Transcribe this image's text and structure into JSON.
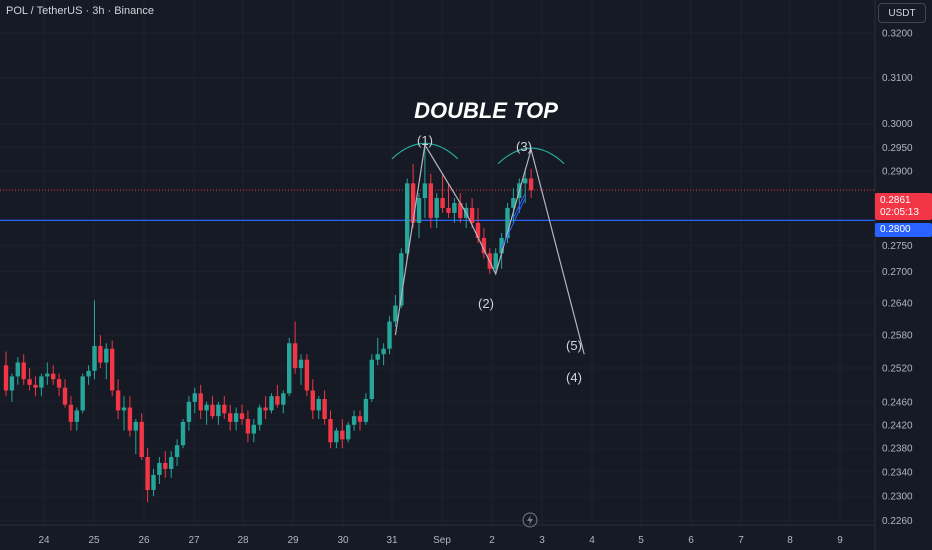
{
  "header": {
    "symbol": "POL / TetherUS · 3h · Binance",
    "currency_button": "USDT"
  },
  "colors": {
    "background": "#161a25",
    "up": "#26a69a",
    "down": "#f23645",
    "level_line": "#2962ff",
    "pattern_line": "#b2b5be",
    "arc": "#26a69a"
  },
  "price_tags": {
    "current_price": "0.2861",
    "countdown": "02:05:13",
    "level_price": "0.2800"
  },
  "annotations": {
    "title": "DOUBLE TOP",
    "p1": "(1)",
    "p2": "(2)",
    "p3": "(3)",
    "p4": "(4)",
    "p5": "(5)"
  },
  "chart_data": {
    "type": "candlestick",
    "title": "DOUBLE TOP",
    "x_ticks": [
      "24",
      "25",
      "26",
      "27",
      "28",
      "29",
      "30",
      "31",
      "Sep",
      "2",
      "3",
      "4",
      "5",
      "6",
      "7",
      "8",
      "9"
    ],
    "y_ticks": [
      "0.3200",
      "0.3100",
      "0.3000",
      "0.2950",
      "0.2900",
      "0.2750",
      "0.2700",
      "0.2640",
      "0.2580",
      "0.2520",
      "0.2460",
      "0.2420",
      "0.2380",
      "0.2340",
      "0.2300",
      "0.2260"
    ],
    "y_tick_values": [
      0.32,
      0.31,
      0.3,
      0.295,
      0.29,
      0.275,
      0.27,
      0.264,
      0.258,
      0.252,
      0.246,
      0.242,
      0.238,
      0.234,
      0.23,
      0.226
    ],
    "ylim": [
      0.2245,
      0.3235
    ],
    "y_scale": "log",
    "current_price": 0.2861,
    "horizontal_level": 0.28,
    "candles": [
      [
        0.2525,
        0.255,
        0.247,
        0.248
      ],
      [
        0.248,
        0.251,
        0.246,
        0.2505
      ],
      [
        0.2505,
        0.254,
        0.249,
        0.253
      ],
      [
        0.253,
        0.2545,
        0.249,
        0.25
      ],
      [
        0.25,
        0.252,
        0.248,
        0.249
      ],
      [
        0.249,
        0.2505,
        0.247,
        0.2485
      ],
      [
        0.2485,
        0.251,
        0.247,
        0.2505
      ],
      [
        0.2505,
        0.253,
        0.249,
        0.251
      ],
      [
        0.251,
        0.2525,
        0.249,
        0.25
      ],
      [
        0.25,
        0.251,
        0.247,
        0.2485
      ],
      [
        0.2485,
        0.25,
        0.245,
        0.2455
      ],
      [
        0.2455,
        0.247,
        0.241,
        0.2425
      ],
      [
        0.2425,
        0.245,
        0.241,
        0.2445
      ],
      [
        0.2445,
        0.251,
        0.244,
        0.2505
      ],
      [
        0.2505,
        0.2525,
        0.249,
        0.2515
      ],
      [
        0.2515,
        0.2645,
        0.25,
        0.256
      ],
      [
        0.256,
        0.258,
        0.252,
        0.253
      ],
      [
        0.253,
        0.2565,
        0.25,
        0.2555
      ],
      [
        0.2555,
        0.257,
        0.247,
        0.248
      ],
      [
        0.248,
        0.25,
        0.243,
        0.2445
      ],
      [
        0.2445,
        0.247,
        0.241,
        0.245
      ],
      [
        0.245,
        0.247,
        0.24,
        0.241
      ],
      [
        0.241,
        0.243,
        0.237,
        0.2425
      ],
      [
        0.2425,
        0.244,
        0.236,
        0.2365
      ],
      [
        0.2365,
        0.238,
        0.229,
        0.231
      ],
      [
        0.231,
        0.2345,
        0.23,
        0.2335
      ],
      [
        0.2335,
        0.2365,
        0.232,
        0.2355
      ],
      [
        0.2355,
        0.2375,
        0.233,
        0.2345
      ],
      [
        0.2345,
        0.2375,
        0.233,
        0.2365
      ],
      [
        0.2365,
        0.2395,
        0.235,
        0.2385
      ],
      [
        0.2385,
        0.243,
        0.238,
        0.2425
      ],
      [
        0.2425,
        0.247,
        0.241,
        0.246
      ],
      [
        0.246,
        0.2485,
        0.244,
        0.2475
      ],
      [
        0.2475,
        0.249,
        0.243,
        0.2445
      ],
      [
        0.2445,
        0.246,
        0.242,
        0.2455
      ],
      [
        0.2455,
        0.247,
        0.243,
        0.2435
      ],
      [
        0.2435,
        0.246,
        0.242,
        0.2455
      ],
      [
        0.2455,
        0.247,
        0.243,
        0.244
      ],
      [
        0.244,
        0.2455,
        0.241,
        0.2425
      ],
      [
        0.2425,
        0.245,
        0.241,
        0.244
      ],
      [
        0.244,
        0.2455,
        0.242,
        0.243
      ],
      [
        0.243,
        0.2445,
        0.239,
        0.2405
      ],
      [
        0.2405,
        0.243,
        0.239,
        0.242
      ],
      [
        0.242,
        0.2455,
        0.241,
        0.245
      ],
      [
        0.245,
        0.247,
        0.243,
        0.2445
      ],
      [
        0.2445,
        0.2475,
        0.244,
        0.247
      ],
      [
        0.247,
        0.249,
        0.245,
        0.2455
      ],
      [
        0.2455,
        0.248,
        0.244,
        0.2475
      ],
      [
        0.2475,
        0.2575,
        0.247,
        0.2565
      ],
      [
        0.2565,
        0.2605,
        0.251,
        0.252
      ],
      [
        0.252,
        0.2545,
        0.249,
        0.2535
      ],
      [
        0.2535,
        0.2545,
        0.247,
        0.248
      ],
      [
        0.248,
        0.25,
        0.243,
        0.2445
      ],
      [
        0.2445,
        0.247,
        0.243,
        0.2465
      ],
      [
        0.2465,
        0.248,
        0.242,
        0.243
      ],
      [
        0.243,
        0.2445,
        0.238,
        0.239
      ],
      [
        0.239,
        0.2415,
        0.238,
        0.241
      ],
      [
        0.241,
        0.243,
        0.238,
        0.2395
      ],
      [
        0.2395,
        0.2425,
        0.239,
        0.242
      ],
      [
        0.242,
        0.2445,
        0.241,
        0.2435
      ],
      [
        0.2435,
        0.2445,
        0.241,
        0.2425
      ],
      [
        0.2425,
        0.2475,
        0.242,
        0.2465
      ],
      [
        0.2465,
        0.2545,
        0.246,
        0.2535
      ],
      [
        0.2535,
        0.2575,
        0.2525,
        0.2545
      ],
      [
        0.2545,
        0.2565,
        0.2525,
        0.2555
      ],
      [
        0.2555,
        0.2615,
        0.2545,
        0.2605
      ],
      [
        0.2605,
        0.2655,
        0.2595,
        0.2635
      ],
      [
        0.2635,
        0.2745,
        0.263,
        0.2735
      ],
      [
        0.2735,
        0.2885,
        0.2725,
        0.2875
      ],
      [
        0.2875,
        0.2915,
        0.2785,
        0.2795
      ],
      [
        0.2795,
        0.2855,
        0.2765,
        0.2845
      ],
      [
        0.2845,
        0.2955,
        0.2805,
        0.2875
      ],
      [
        0.2875,
        0.2895,
        0.2785,
        0.2805
      ],
      [
        0.2805,
        0.2855,
        0.2785,
        0.2845
      ],
      [
        0.2845,
        0.2895,
        0.2815,
        0.2825
      ],
      [
        0.2825,
        0.2875,
        0.2805,
        0.2815
      ],
      [
        0.2815,
        0.2845,
        0.2795,
        0.2835
      ],
      [
        0.2835,
        0.2855,
        0.2795,
        0.2805
      ],
      [
        0.2805,
        0.2835,
        0.2785,
        0.2825
      ],
      [
        0.2825,
        0.2845,
        0.2785,
        0.2795
      ],
      [
        0.2795,
        0.2825,
        0.2755,
        0.2765
      ],
      [
        0.2765,
        0.2785,
        0.2725,
        0.2735
      ],
      [
        0.2735,
        0.2745,
        0.2695,
        0.2705
      ],
      [
        0.2705,
        0.2745,
        0.2695,
        0.2735
      ],
      [
        0.2735,
        0.2775,
        0.2705,
        0.2765
      ],
      [
        0.2765,
        0.2835,
        0.2755,
        0.2825
      ],
      [
        0.2825,
        0.2865,
        0.2795,
        0.2845
      ],
      [
        0.2845,
        0.2885,
        0.2815,
        0.2875
      ],
      [
        0.2875,
        0.2905,
        0.2835,
        0.2885
      ],
      [
        0.2885,
        0.2905,
        0.2845,
        0.2861
      ]
    ],
    "pattern_polyline": [
      [
        66,
        0.258
      ],
      [
        71,
        0.2955
      ],
      [
        78,
        0.2815
      ],
      [
        83,
        0.2695
      ],
      [
        89,
        0.2945
      ],
      [
        98,
        0.2545
      ]
    ],
    "arcs_at_candles": [
      71,
      89
    ],
    "labels": [
      {
        "text": "(1)",
        "near": "first peak"
      },
      {
        "text": "(2)",
        "near": "neckline low"
      },
      {
        "text": "(3)",
        "near": "second peak"
      },
      {
        "text": "(4)",
        "near": "target"
      },
      {
        "text": "(5)",
        "near": "target"
      }
    ]
  }
}
